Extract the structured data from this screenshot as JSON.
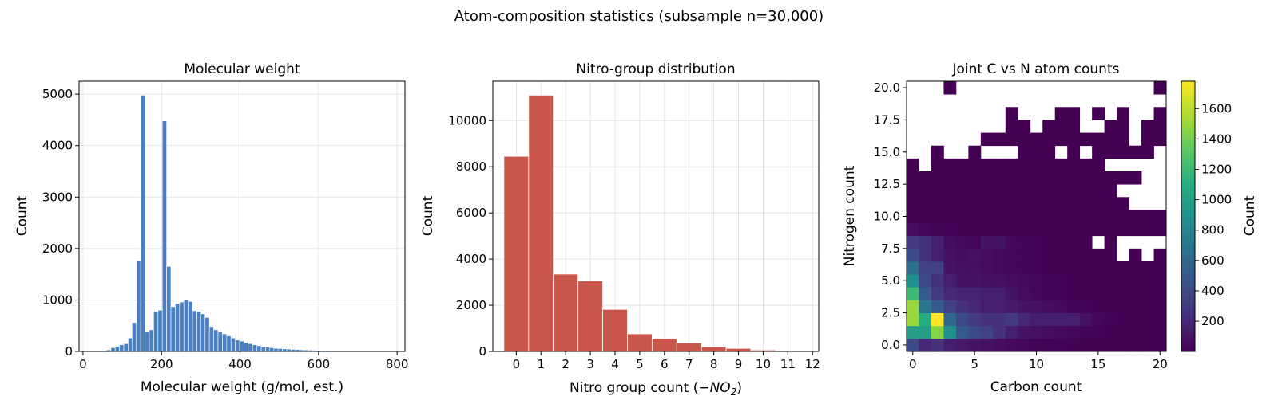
{
  "figure_title": "Atom-composition statistics (subsample n=30,000)",
  "chart_data": [
    {
      "type": "bar",
      "title": "Molecular weight",
      "xlabel": "Molecular weight (g/mol, est.)",
      "ylabel": "Count",
      "xlim": [
        -10,
        820
      ],
      "ylim": [
        0,
        5250
      ],
      "xticks": [
        0,
        200,
        400,
        600,
        800
      ],
      "yticks": [
        0,
        1000,
        2000,
        3000,
        4000,
        5000
      ],
      "grid": true,
      "color": "#4a80c0",
      "bin_width": 10.9,
      "bin_starts": [
        49,
        60,
        71,
        82,
        93,
        104,
        115,
        125,
        136,
        147,
        158,
        169,
        180,
        191,
        202,
        213,
        224,
        235,
        246,
        257,
        268,
        279,
        290,
        300,
        311,
        322,
        333,
        344,
        355,
        366,
        377,
        388,
        399,
        410,
        421,
        432,
        443,
        454,
        465,
        475,
        486,
        497,
        508,
        519,
        530,
        541,
        552,
        563,
        574,
        585,
        596,
        607,
        618,
        629,
        640,
        650,
        661,
        672,
        683,
        694,
        705,
        716,
        727,
        738,
        749,
        760,
        771,
        782,
        793
      ],
      "values": [
        10,
        30,
        70,
        100,
        130,
        150,
        260,
        560,
        1760,
        4980,
        390,
        420,
        780,
        800,
        4480,
        1650,
        870,
        930,
        960,
        1010,
        970,
        790,
        780,
        730,
        660,
        480,
        420,
        380,
        340,
        300,
        260,
        220,
        200,
        170,
        150,
        130,
        110,
        95,
        85,
        70,
        60,
        55,
        50,
        45,
        40,
        35,
        30,
        28,
        25,
        22,
        20,
        18,
        15,
        13,
        12,
        10,
        10,
        9,
        8,
        7,
        6,
        5,
        5,
        4,
        4,
        3,
        3,
        2,
        2
      ]
    },
    {
      "type": "bar",
      "title": "Nitro-group distribution",
      "xlabel": "Nitro group count (−NO₂)",
      "xlabel_parts": [
        "Nitro group count (−",
        "NO",
        "2",
        ")"
      ],
      "ylabel": "Count",
      "xlim": [
        -0.95,
        12.25
      ],
      "ylim": [
        0,
        11700
      ],
      "xticks": [
        0,
        1,
        2,
        3,
        4,
        5,
        6,
        7,
        8,
        9,
        10,
        11,
        12
      ],
      "yticks": [
        0,
        2000,
        4000,
        6000,
        8000,
        10000
      ],
      "grid": true,
      "color": "#c8564a",
      "categories": [
        0,
        1,
        2,
        3,
        4,
        5,
        6,
        7,
        8,
        9,
        10,
        11,
        12
      ],
      "values": [
        8450,
        11100,
        3350,
        3050,
        1820,
        760,
        560,
        370,
        200,
        130,
        60,
        30,
        15
      ]
    },
    {
      "type": "heatmap",
      "title": "Joint C vs N atom counts",
      "xlabel": "Carbon count",
      "ylabel": "Nitrogen count",
      "xlim": [
        -0.5,
        20.5
      ],
      "ylim": [
        -0.5,
        20.5
      ],
      "xticks": [
        0,
        5,
        10,
        15,
        20
      ],
      "yticks": [
        0.0,
        2.5,
        5.0,
        7.5,
        10.0,
        12.5,
        15.0,
        17.5,
        20.0
      ],
      "colorbar": {
        "label": "Count",
        "min": 1,
        "max": 1780,
        "ticks": [
          200,
          400,
          600,
          800,
          1000,
          1200,
          1400,
          1600
        ],
        "colormap": "viridis"
      },
      "rows_note": "rows listed from N=0 (bottom) to N=20 (top); columns C=0..20; null = empty bin",
      "values": [
        [
          400,
          200,
          250,
          150,
          120,
          100,
          80,
          60,
          40,
          30,
          20,
          15,
          10,
          8,
          5,
          3,
          2,
          2,
          1,
          1,
          1
        ],
        [
          1000,
          1000,
          1450,
          900,
          500,
          400,
          350,
          250,
          150,
          100,
          80,
          60,
          40,
          30,
          20,
          10,
          5,
          3,
          2,
          1,
          1
        ],
        [
          1500,
          1100,
          1780,
          600,
          400,
          300,
          250,
          250,
          300,
          200,
          150,
          150,
          150,
          150,
          80,
          30,
          10,
          5,
          3,
          2,
          1
        ],
        [
          1500,
          700,
          500,
          350,
          250,
          200,
          150,
          150,
          120,
          100,
          80,
          60,
          40,
          20,
          10,
          5,
          3,
          2,
          1,
          1,
          1
        ],
        [
          1200,
          500,
          300,
          200,
          180,
          180,
          150,
          150,
          100,
          50,
          30,
          20,
          10,
          5,
          3,
          2,
          1,
          1,
          1,
          1,
          1
        ],
        [
          900,
          400,
          250,
          150,
          100,
          100,
          80,
          80,
          60,
          40,
          30,
          20,
          10,
          5,
          3,
          2,
          1,
          1,
          1,
          1,
          1
        ],
        [
          650,
          350,
          350,
          100,
          80,
          80,
          50,
          40,
          30,
          20,
          10,
          5,
          3,
          2,
          1,
          1,
          1,
          1,
          1,
          1,
          1
        ],
        [
          400,
          250,
          150,
          80,
          60,
          80,
          60,
          40,
          30,
          20,
          10,
          5,
          3,
          2,
          1,
          1,
          1,
          null,
          1,
          null,
          1
        ],
        [
          300,
          250,
          150,
          60,
          40,
          30,
          100,
          100,
          30,
          20,
          10,
          5,
          3,
          2,
          1,
          null,
          1,
          null,
          null,
          null,
          null
        ],
        [
          50,
          30,
          20,
          10,
          5,
          3,
          2,
          1,
          1,
          1,
          1,
          1,
          1,
          1,
          1,
          1,
          1,
          1,
          1,
          1,
          1
        ],
        [
          5,
          3,
          2,
          1,
          1,
          1,
          1,
          1,
          1,
          1,
          1,
          1,
          1,
          1,
          1,
          1,
          1,
          1,
          1,
          1,
          1
        ],
        [
          3,
          2,
          1,
          1,
          1,
          1,
          1,
          1,
          1,
          1,
          1,
          1,
          1,
          1,
          1,
          1,
          1,
          1,
          null,
          null,
          null
        ],
        [
          1,
          1,
          1,
          1,
          1,
          1,
          1,
          1,
          1,
          1,
          1,
          1,
          1,
          1,
          1,
          1,
          1,
          null,
          null,
          null,
          null
        ],
        [
          1,
          1,
          1,
          1,
          1,
          1,
          1,
          1,
          1,
          1,
          1,
          1,
          1,
          1,
          1,
          1,
          1,
          1,
          1,
          null,
          null
        ],
        [
          1,
          null,
          1,
          1,
          1,
          1,
          1,
          1,
          1,
          1,
          1,
          1,
          1,
          1,
          1,
          1,
          null,
          null,
          null,
          null,
          null
        ],
        [
          null,
          null,
          1,
          null,
          null,
          1,
          null,
          null,
          null,
          1,
          1,
          1,
          null,
          1,
          null,
          1,
          1,
          1,
          1,
          1,
          null
        ],
        [
          null,
          null,
          null,
          null,
          null,
          null,
          1,
          1,
          1,
          1,
          1,
          1,
          1,
          1,
          1,
          1,
          1,
          1,
          null,
          1,
          1
        ],
        [
          null,
          null,
          null,
          null,
          null,
          null,
          null,
          null,
          1,
          1,
          null,
          1,
          1,
          1,
          null,
          null,
          1,
          1,
          null,
          1,
          1
        ],
        [
          null,
          null,
          null,
          null,
          null,
          null,
          null,
          null,
          1,
          null,
          null,
          null,
          1,
          1,
          null,
          1,
          null,
          1,
          null,
          null,
          1
        ],
        [
          null,
          null,
          null,
          null,
          null,
          null,
          null,
          null,
          null,
          null,
          null,
          null,
          null,
          null,
          null,
          null,
          null,
          null,
          null,
          null,
          null
        ],
        [
          null,
          null,
          null,
          1,
          null,
          null,
          null,
          null,
          null,
          null,
          null,
          null,
          null,
          null,
          null,
          null,
          null,
          null,
          null,
          null,
          1
        ]
      ]
    }
  ]
}
